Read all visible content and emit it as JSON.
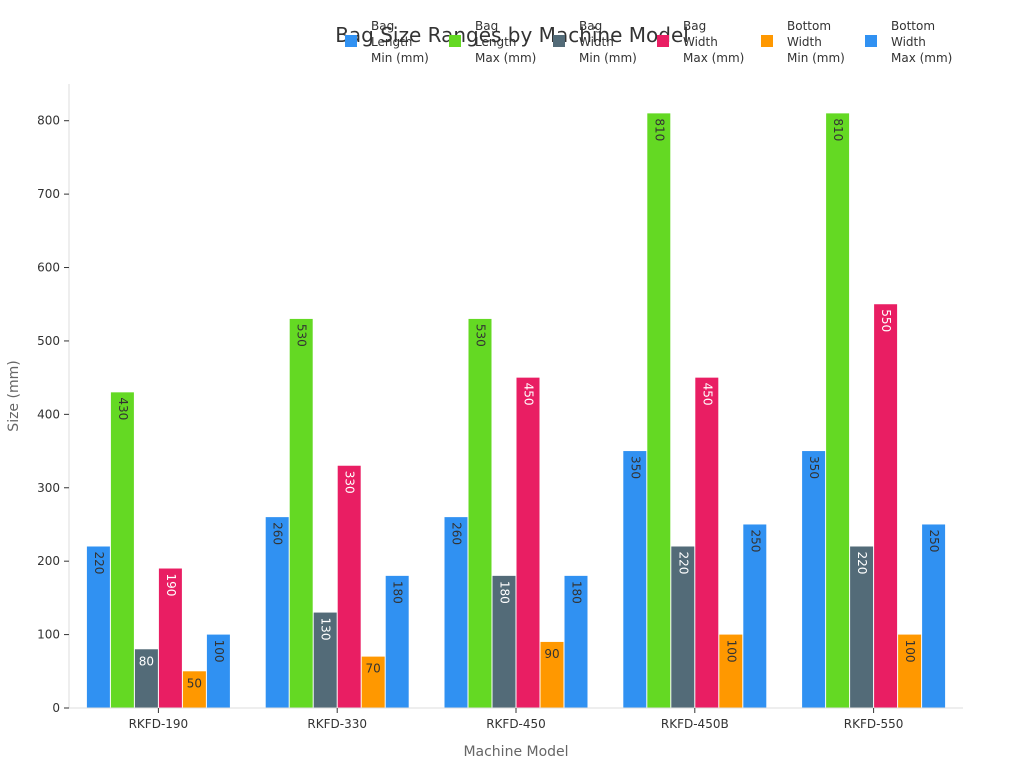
{
  "chart_data": {
    "type": "bar",
    "title": "Bag Size Ranges by Machine Model",
    "xlabel": "Machine Model",
    "ylabel": "Size (mm)",
    "ylim": [
      0,
      850
    ],
    "yticks": [
      0,
      100,
      200,
      300,
      400,
      500,
      600,
      700,
      800
    ],
    "grid": false,
    "legend_position": "top-right",
    "categories": [
      "RKFD-190",
      "RKFD-330",
      "RKFD-450",
      "RKFD-450B",
      "RKFD-550"
    ],
    "series": [
      {
        "name": "Bag Length Min (mm)",
        "legend_lines": [
          "Bag",
          "Length",
          "Min (mm)"
        ],
        "color": "#3091f2",
        "label_color": "#333333",
        "values": [
          220,
          260,
          260,
          350,
          350
        ]
      },
      {
        "name": "Bag Length Max (mm)",
        "legend_lines": [
          "Bag",
          "Length",
          "Max (mm)"
        ],
        "color": "#64d923",
        "label_color": "#333333",
        "values": [
          430,
          530,
          530,
          810,
          810
        ]
      },
      {
        "name": "Bag Width Min (mm)",
        "legend_lines": [
          "Bag",
          "Width",
          "Min (mm)"
        ],
        "color": "#536b78",
        "label_color": "#ffffff",
        "values": [
          80,
          130,
          180,
          220,
          220
        ]
      },
      {
        "name": "Bag Width Max (mm)",
        "legend_lines": [
          "Bag",
          "Width",
          "Max (mm)"
        ],
        "color": "#e91e63",
        "label_color": "#ffffff",
        "values": [
          190,
          330,
          450,
          450,
          550
        ]
      },
      {
        "name": "Bottom Width Min (mm)",
        "legend_lines": [
          "Bottom",
          "Width",
          "Min (mm)"
        ],
        "color": "#ff9800",
        "label_color": "#333333",
        "values": [
          50,
          70,
          90,
          100,
          100
        ]
      },
      {
        "name": "Bottom Width Max (mm)",
        "legend_lines": [
          "Bottom",
          "Width",
          "Max (mm)"
        ],
        "color": "#3091f2",
        "label_color": "#333333",
        "values": [
          100,
          180,
          180,
          250,
          250
        ]
      }
    ]
  }
}
